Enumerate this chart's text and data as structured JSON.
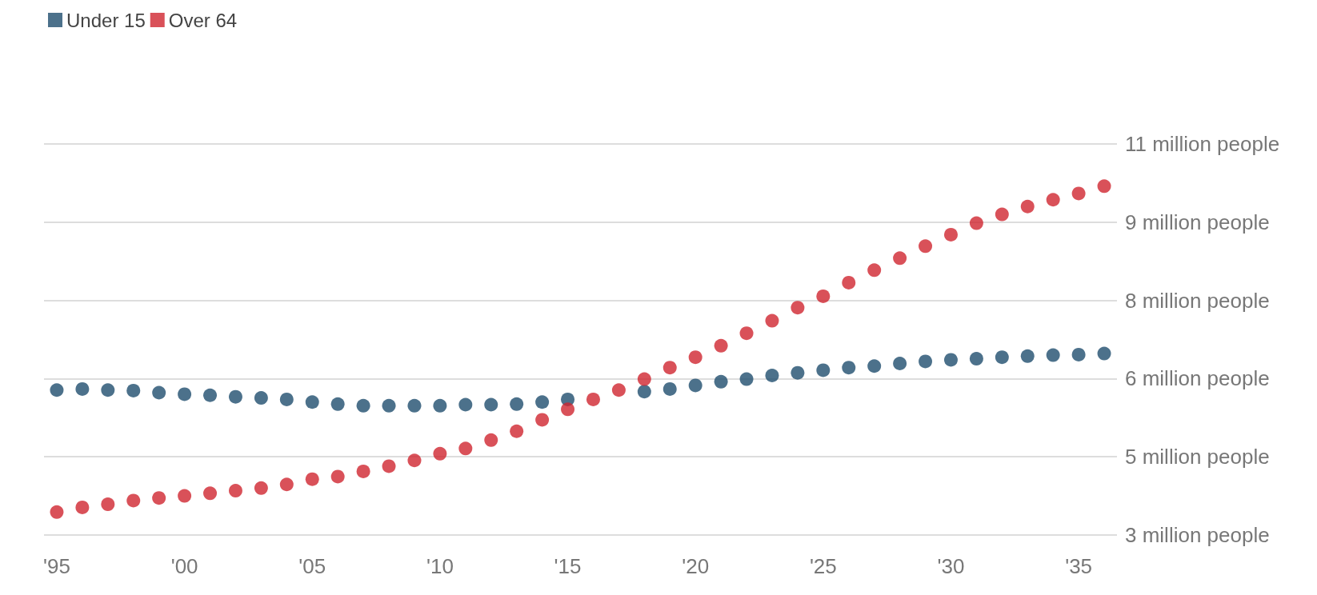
{
  "chart_data": {
    "type": "scatter",
    "marker": "circle",
    "legend": "top left",
    "grid": "y",
    "x": [
      1995,
      1996,
      1997,
      1998,
      1999,
      2000,
      2001,
      2002,
      2003,
      2004,
      2005,
      2006,
      2007,
      2008,
      2009,
      2010,
      2011,
      2012,
      2013,
      2014,
      2015,
      2016,
      2017,
      2018,
      2019,
      2020,
      2021,
      2022,
      2023,
      2024,
      2025,
      2026,
      2027,
      2028,
      2029,
      2030,
      2031,
      2032,
      2033,
      2034,
      2035,
      2036
    ],
    "series": [
      {
        "name": "Under 15",
        "color": "#1f4e6e",
        "values": [
          5.78,
          5.8,
          5.78,
          5.77,
          5.73,
          5.7,
          5.68,
          5.65,
          5.63,
          5.6,
          5.55,
          5.51,
          5.48,
          5.48,
          5.48,
          5.48,
          5.5,
          5.5,
          5.51,
          5.55,
          5.6,
          null,
          null,
          5.75,
          5.8,
          5.87,
          5.94,
          5.99,
          6.06,
          6.11,
          6.16,
          6.21,
          6.24,
          6.29,
          6.33,
          6.36,
          6.38,
          6.41,
          6.43,
          6.45,
          6.46,
          6.48
        ]
      },
      {
        "name": "Over 64",
        "color": "#d0262f",
        "values": [
          3.44,
          3.53,
          3.59,
          3.66,
          3.71,
          3.75,
          3.8,
          3.85,
          3.9,
          3.97,
          4.07,
          4.12,
          4.22,
          4.32,
          4.43,
          4.56,
          4.66,
          4.82,
          4.99,
          5.21,
          5.41,
          5.6,
          5.78,
          5.99,
          6.21,
          6.41,
          6.63,
          6.87,
          7.11,
          7.36,
          7.58,
          7.84,
          8.08,
          8.31,
          8.54,
          8.76,
          8.98,
          9.15,
          9.3,
          9.43,
          9.55,
          9.69
        ]
      }
    ],
    "xlim": [
      1994.5,
      2036.5
    ],
    "xticks": [
      {
        "value": 1995,
        "label": "'95"
      },
      {
        "value": 2000,
        "label": "'00"
      },
      {
        "value": 2005,
        "label": "'05"
      },
      {
        "value": 2010,
        "label": "'10"
      },
      {
        "value": 2015,
        "label": "'15"
      },
      {
        "value": 2020,
        "label": "'20"
      },
      {
        "value": 2025,
        "label": "'25"
      },
      {
        "value": 2030,
        "label": "'30"
      },
      {
        "value": 2035,
        "label": "'35"
      }
    ],
    "ylim": [
      3,
      10.5
    ],
    "yticks": [
      {
        "value": 3,
        "label": "3 million people"
      },
      {
        "value": 4.5,
        "label": "5 million people"
      },
      {
        "value": 6,
        "label": "6 million people"
      },
      {
        "value": 7.5,
        "label": "8 million people"
      },
      {
        "value": 9,
        "label": "9 million people"
      },
      {
        "value": 10.5,
        "label": "11 million people"
      }
    ]
  }
}
